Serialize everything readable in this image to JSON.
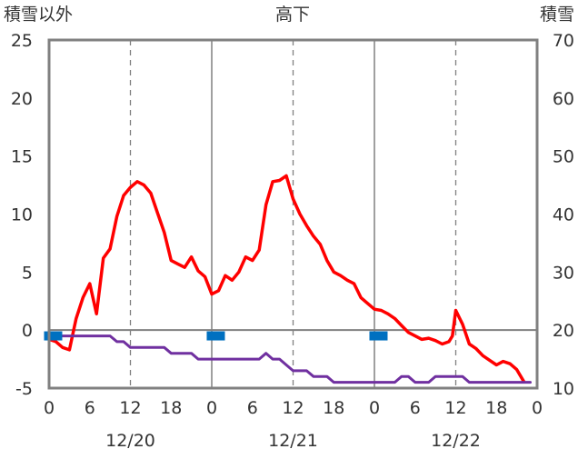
{
  "chart_data": {
    "type": "line",
    "title": "高下",
    "ylabel_left": "積雪以外",
    "ylabel_right": "積雪",
    "left_axis": {
      "min": -5,
      "max": 25,
      "ticks": [
        -5,
        0,
        5,
        10,
        15,
        20,
        25
      ]
    },
    "right_axis": {
      "min": 10,
      "max": 70,
      "ticks": [
        10,
        20,
        30,
        40,
        50,
        60,
        70
      ]
    },
    "x_axis": {
      "min": 0,
      "max": 72,
      "ticks": [
        {
          "x": 0,
          "label": "0"
        },
        {
          "x": 6,
          "label": "6"
        },
        {
          "x": 12,
          "label": "12"
        },
        {
          "x": 18,
          "label": "18"
        },
        {
          "x": 24,
          "label": "0"
        },
        {
          "x": 30,
          "label": "6"
        },
        {
          "x": 36,
          "label": "12"
        },
        {
          "x": 42,
          "label": "18"
        },
        {
          "x": 48,
          "label": "0"
        },
        {
          "x": 54,
          "label": "6"
        },
        {
          "x": 60,
          "label": "12"
        },
        {
          "x": 66,
          "label": "18"
        },
        {
          "x": 72,
          "label": "0"
        }
      ],
      "dates": [
        {
          "x": 12,
          "label": "12/20"
        },
        {
          "x": 36,
          "label": "12/21"
        },
        {
          "x": 60,
          "label": "12/22"
        }
      ],
      "day_boundaries": [
        24,
        48
      ],
      "dashed_gridlines": [
        12,
        36,
        60
      ]
    },
    "zero_line": 0,
    "series": [
      {
        "color": "#ff0000",
        "axis": "left",
        "points": [
          [
            0,
            -0.8
          ],
          [
            1,
            -1.0
          ],
          [
            2,
            -1.5
          ],
          [
            3,
            -1.7
          ],
          [
            4,
            1.0
          ],
          [
            5,
            2.8
          ],
          [
            6,
            4.0
          ],
          [
            7,
            1.4
          ],
          [
            8,
            6.2
          ],
          [
            9,
            7.0
          ],
          [
            10,
            9.8
          ],
          [
            11,
            11.6
          ],
          [
            12,
            12.3
          ],
          [
            13,
            12.8
          ],
          [
            14,
            12.5
          ],
          [
            15,
            11.8
          ],
          [
            16,
            10.1
          ],
          [
            17,
            8.4
          ],
          [
            18,
            6.0
          ],
          [
            19,
            5.7
          ],
          [
            20,
            5.4
          ],
          [
            21,
            6.3
          ],
          [
            22,
            5.1
          ],
          [
            23,
            4.6
          ],
          [
            24,
            3.1
          ],
          [
            25,
            3.4
          ],
          [
            26,
            4.7
          ],
          [
            27,
            4.3
          ],
          [
            28,
            5.0
          ],
          [
            29,
            6.3
          ],
          [
            30,
            6.0
          ],
          [
            31,
            6.9
          ],
          [
            32,
            10.8
          ],
          [
            33,
            12.8
          ],
          [
            34,
            12.9
          ],
          [
            35,
            13.3
          ],
          [
            36,
            11.3
          ],
          [
            37,
            10.0
          ],
          [
            38,
            9.0
          ],
          [
            39,
            8.1
          ],
          [
            40,
            7.4
          ],
          [
            41,
            6.0
          ],
          [
            42,
            5.0
          ],
          [
            43,
            4.7
          ],
          [
            44,
            4.3
          ],
          [
            45,
            4.0
          ],
          [
            46,
            2.8
          ],
          [
            47,
            2.3
          ],
          [
            48,
            1.8
          ],
          [
            49,
            1.7
          ],
          [
            50,
            1.4
          ],
          [
            51,
            1.0
          ],
          [
            52,
            0.4
          ],
          [
            53,
            -0.2
          ],
          [
            54,
            -0.5
          ],
          [
            55,
            -0.8
          ],
          [
            56,
            -0.7
          ],
          [
            57,
            -0.9
          ],
          [
            58,
            -1.2
          ],
          [
            59,
            -1.0
          ],
          [
            59.5,
            -0.5
          ],
          [
            60,
            1.7
          ],
          [
            61,
            0.5
          ],
          [
            62,
            -1.2
          ],
          [
            63,
            -1.6
          ],
          [
            64,
            -2.2
          ],
          [
            65,
            -2.6
          ],
          [
            66,
            -3.0
          ],
          [
            67,
            -2.7
          ],
          [
            68,
            -2.9
          ],
          [
            69,
            -3.4
          ],
          [
            70,
            -4.4
          ]
        ]
      },
      {
        "color": "#7030a0",
        "axis": "left",
        "points": [
          [
            0,
            -0.5
          ],
          [
            9,
            -0.5
          ],
          [
            10,
            -1.0
          ],
          [
            11,
            -1.0
          ],
          [
            12,
            -1.5
          ],
          [
            17,
            -1.5
          ],
          [
            18,
            -2.0
          ],
          [
            21,
            -2.0
          ],
          [
            22,
            -2.5
          ],
          [
            31,
            -2.5
          ],
          [
            32,
            -2.0
          ],
          [
            33,
            -2.5
          ],
          [
            34,
            -2.5
          ],
          [
            35,
            -3.0
          ],
          [
            36,
            -3.5
          ],
          [
            38,
            -3.5
          ],
          [
            39,
            -4.0
          ],
          [
            41,
            -4.0
          ],
          [
            42,
            -4.5
          ],
          [
            51,
            -4.5
          ],
          [
            52,
            -4.0
          ],
          [
            53,
            -4.0
          ],
          [
            54,
            -4.5
          ],
          [
            56,
            -4.5
          ],
          [
            57,
            -4.0
          ],
          [
            61,
            -4.0
          ],
          [
            62,
            -4.5
          ],
          [
            71,
            -4.5
          ]
        ]
      }
    ],
    "markers": [
      {
        "x": 0.6,
        "y": -0.5,
        "color": "#0070c0"
      },
      {
        "x": 24.6,
        "y": -0.5,
        "color": "#0070c0"
      },
      {
        "x": 48.6,
        "y": -0.5,
        "color": "#0070c0"
      }
    ]
  }
}
